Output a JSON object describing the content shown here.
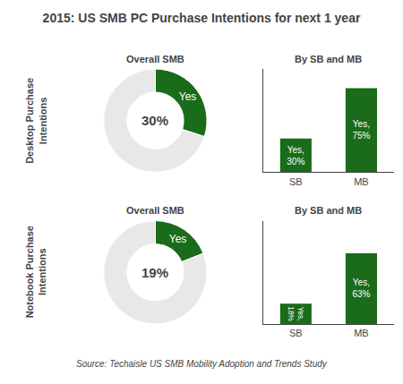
{
  "title": "2015: US SMB PC Purchase Intentions for next 1 year",
  "annotations": [
    "Source: Techaisle US SMB Mobility Adoption and Trends Study"
  ],
  "chart_data": [
    {
      "type": "pie",
      "title": "Overall SMB",
      "categories": [
        "Yes",
        null
      ],
      "values": [
        30,
        70
      ],
      "colors": [
        "#1a6b1a",
        "#e8e8e8"
      ],
      "annotations": [
        "Desktop Purchase\nIntentions",
        "30%"
      ]
    },
    {
      "type": "bar",
      "title": "By SB and MB",
      "categories": [
        "SB",
        "MB"
      ],
      "values": [
        30,
        75
      ],
      "value_labels": [
        "Yes,\n30%",
        "Yes,\n75%"
      ],
      "data_labels": true,
      "color": "#1a6b1a",
      "ylim": [
        0,
        92
      ],
      "tick_labels": "x",
      "grid": false
    },
    {
      "type": "pie",
      "title": "Overall SMB",
      "categories": [
        "Yes",
        null
      ],
      "values": [
        19,
        81
      ],
      "colors": [
        "#1a6b1a",
        "#e8e8e8"
      ],
      "annotations": [
        "Notebook Purchase\nIntentions",
        "19%"
      ]
    },
    {
      "type": "bar",
      "title": "By SB and MB",
      "categories": [
        "SB",
        "MB"
      ],
      "values": [
        18,
        63
      ],
      "value_labels": [
        "Yes,\n18%",
        "Yes,\n63%"
      ],
      "data_labels": true,
      "color": "#1a6b1a",
      "ylim": [
        0,
        92
      ],
      "tick_labels": "x",
      "grid": false
    }
  ]
}
